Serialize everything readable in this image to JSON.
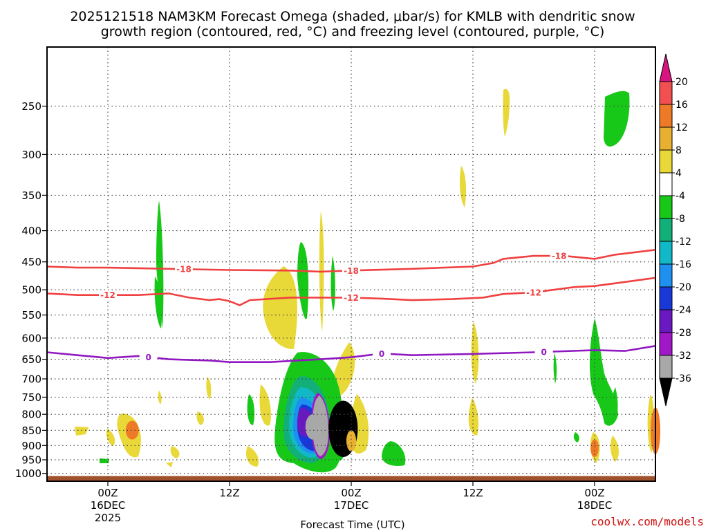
{
  "chart_data": {
    "type": "heatmap",
    "title_line1": "2025121518 NAM3KM Forecast Omega (shaded, μbar/s) for KMLB with dendritic snow",
    "title_line2": "growth region (contoured, red, °C) and freezing level (contoured, purple, °C)",
    "xlabel": "Forecast Time (UTC)",
    "credit": "coolwx.com/models",
    "x_hours_range": [
      -6,
      54
    ],
    "y_pressure_range": [
      1030,
      200
    ],
    "y_ticks": [
      250,
      300,
      350,
      400,
      450,
      500,
      550,
      600,
      650,
      700,
      750,
      800,
      850,
      900,
      950,
      1000
    ],
    "y_tick_labels": [
      "250",
      "300",
      "350",
      "400",
      "450",
      "500",
      "550",
      "600",
      "650",
      "700",
      "750",
      "800",
      "850",
      "900",
      "950",
      "1000"
    ],
    "x_ticks": [
      {
        "hour": 0,
        "line1": "00Z",
        "line2": "16DEC",
        "line3": "2025"
      },
      {
        "hour": 12,
        "line1": "12Z",
        "line2": "",
        "line3": ""
      },
      {
        "hour": 24,
        "line1": "00Z",
        "line2": "17DEC",
        "line3": ""
      },
      {
        "hour": 36,
        "line1": "12Z",
        "line2": "",
        "line3": ""
      },
      {
        "hour": 48,
        "line1": "00Z",
        "line2": "18DEC",
        "line3": ""
      }
    ],
    "colorbar": {
      "levels": [
        20,
        16,
        12,
        8,
        4,
        -4,
        -8,
        -12,
        -16,
        -20,
        -24,
        -28,
        -32,
        -36
      ],
      "labels": [
        "20",
        "16",
        "12",
        "8",
        "4",
        "-4",
        "-8",
        "-12",
        "-16",
        "-20",
        "-24",
        "-28",
        "-32",
        "-36"
      ],
      "colors": [
        "#d81480",
        "#f25050",
        "#ee7a28",
        "#e8b030",
        "#e8d838",
        "#ffffff",
        "#18c818",
        "#12b078",
        "#10b8c8",
        "#1e90f0",
        "#1838d8",
        "#6a18c0",
        "#a018c8",
        "#a8a8a8",
        "#000000"
      ]
    },
    "contours": [
      {
        "name": "dgz-top",
        "label": "-18",
        "color": "#f04040",
        "points": [
          [
            -6,
            458
          ],
          [
            -3,
            460
          ],
          [
            0,
            460
          ],
          [
            6,
            462
          ],
          [
            12,
            464
          ],
          [
            18,
            465
          ],
          [
            21,
            467
          ],
          [
            24,
            465
          ],
          [
            30,
            462
          ],
          [
            36,
            458
          ],
          [
            38,
            452
          ],
          [
            39,
            445
          ],
          [
            42,
            440
          ],
          [
            45,
            440
          ],
          [
            48,
            445
          ],
          [
            50,
            438
          ],
          [
            54,
            430
          ]
        ],
        "label_hours": [
          -19,
          7.5,
          24,
          44.5
        ]
      },
      {
        "name": "dgz-bottom",
        "label": "-12",
        "color": "#f04040",
        "points": [
          [
            -6,
            507
          ],
          [
            -3,
            510
          ],
          [
            0,
            510
          ],
          [
            3,
            510
          ],
          [
            6,
            507
          ],
          [
            8,
            515
          ],
          [
            10,
            520
          ],
          [
            11,
            518
          ],
          [
            12,
            522
          ],
          [
            13,
            530
          ],
          [
            14,
            520
          ],
          [
            18,
            515
          ],
          [
            22,
            515
          ],
          [
            24,
            515
          ],
          [
            27,
            517
          ],
          [
            30,
            520
          ],
          [
            34,
            518
          ],
          [
            37,
            515
          ],
          [
            39,
            508
          ],
          [
            42,
            505
          ],
          [
            46,
            495
          ],
          [
            48,
            493
          ],
          [
            50,
            488
          ],
          [
            54,
            478
          ]
        ],
        "label_hours": [
          0,
          24,
          42
        ]
      },
      {
        "name": "freezing-level",
        "label": "0",
        "color": "#9018c0",
        "points": [
          [
            -6,
            633
          ],
          [
            -3,
            640
          ],
          [
            0,
            647
          ],
          [
            3,
            642
          ],
          [
            6,
            650
          ],
          [
            10,
            653
          ],
          [
            12,
            657
          ],
          [
            16,
            657
          ],
          [
            21,
            650
          ],
          [
            24,
            645
          ],
          [
            27,
            636
          ],
          [
            30,
            640
          ],
          [
            36,
            637
          ],
          [
            42,
            633
          ],
          [
            48,
            628
          ],
          [
            51,
            630
          ],
          [
            54,
            618
          ]
        ],
        "label_hours": [
          4,
          27,
          43
        ]
      }
    ],
    "omega_cells": [
      {
        "hour": 23.2,
        "p_top": 760,
        "p_bot": 940,
        "w": 1.8,
        "color": "#000000"
      },
      {
        "hour": 20.2,
        "p_top": 800,
        "p_bot": 880,
        "w": 0.9,
        "color": "#a8a8a8"
      },
      {
        "hour": 2.4,
        "p_top": 820,
        "p_bot": 880,
        "w": 0.8,
        "color": "#ee7a28"
      },
      {
        "hour": 48.0,
        "p_top": 880,
        "p_bot": 940,
        "w": 0.5,
        "color": "#ee7a28"
      },
      {
        "hour": 54.0,
        "p_top": 780,
        "p_bot": 930,
        "w": 0.6,
        "color": "#ee7a28"
      },
      {
        "hour": 24.0,
        "p_top": 850,
        "p_bot": 920,
        "w": 0.6,
        "color": "#e8b030"
      }
    ],
    "ground_pressure": 1010
  }
}
